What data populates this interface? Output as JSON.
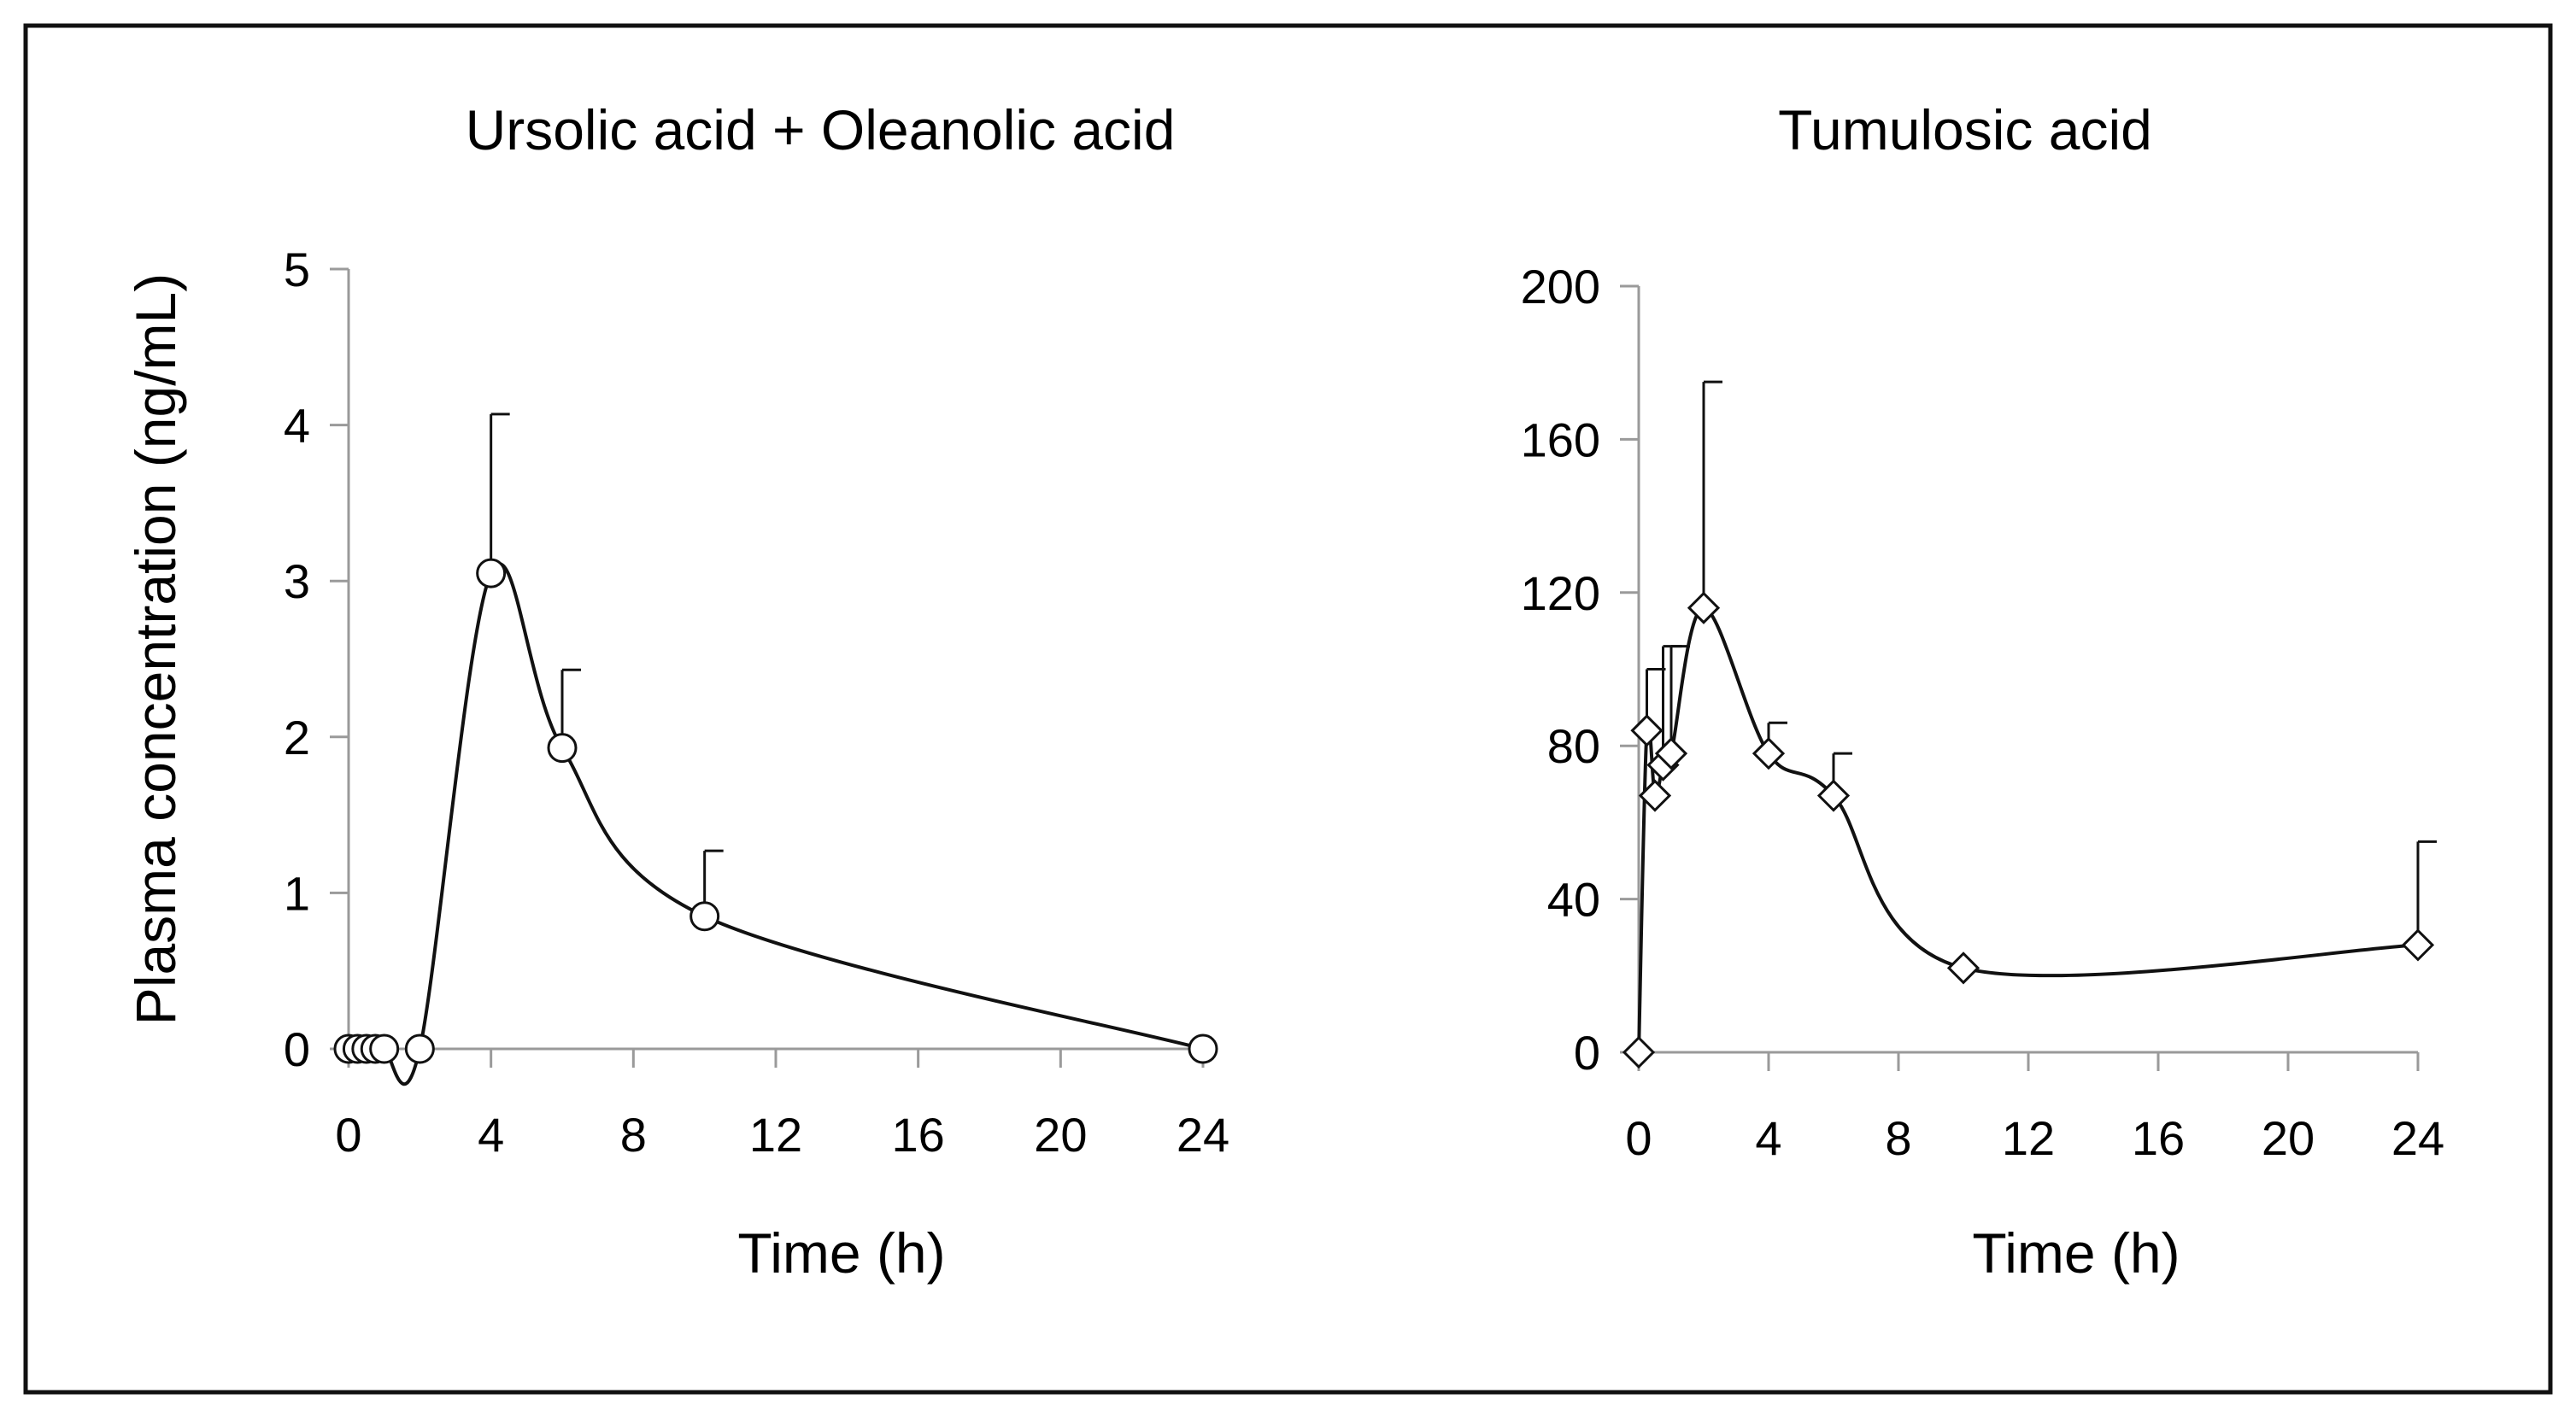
{
  "chart_data": [
    {
      "type": "line",
      "title": "Ursolic acid + Oleanolic acid",
      "xlabel": "Time (h)",
      "ylabel": "Plasma concentration (ng/mL)",
      "xlim": [
        0,
        24
      ],
      "ylim": [
        0,
        5
      ],
      "x_ticks": [
        0,
        4,
        8,
        12,
        16,
        20,
        24
      ],
      "y_ticks": [
        0,
        1,
        2,
        3,
        4,
        5
      ],
      "x_tick_labels": [
        "0",
        "4",
        "8",
        "12",
        "16",
        "20",
        "24"
      ],
      "y_tick_labels": [
        "0",
        "1",
        "2",
        "3",
        "4",
        "5"
      ],
      "marker": "circle",
      "grid": false,
      "series": [
        {
          "x": [
            0,
            0.25,
            0.5,
            0.75,
            1,
            2,
            4,
            6,
            10,
            24
          ],
          "y": [
            0,
            0,
            0,
            0,
            0,
            0,
            3.05,
            1.93,
            0.85,
            0
          ],
          "error_upper": [
            null,
            null,
            null,
            null,
            null,
            null,
            4.07,
            2.43,
            1.27,
            null
          ]
        }
      ]
    },
    {
      "type": "line",
      "title": "Tumulosic acid",
      "xlabel": "Time (h)",
      "ylabel": "",
      "xlim": [
        0,
        24
      ],
      "ylim": [
        0,
        200
      ],
      "x_ticks": [
        0,
        4,
        8,
        12,
        16,
        20,
        24
      ],
      "y_ticks": [
        0,
        40,
        80,
        120,
        160,
        200
      ],
      "x_tick_labels": [
        "0",
        "4",
        "8",
        "12",
        "16",
        "20",
        "24"
      ],
      "y_tick_labels": [
        "0",
        "40",
        "80",
        "120",
        "160",
        "200"
      ],
      "marker": "diamond",
      "grid": false,
      "series": [
        {
          "x": [
            0,
            0.25,
            0.5,
            0.75,
            1,
            2,
            4,
            6,
            10,
            24
          ],
          "y": [
            0,
            84,
            67,
            75,
            78,
            116,
            78,
            67,
            22,
            28
          ],
          "error_upper": [
            null,
            100,
            null,
            106,
            106,
            175,
            86,
            78,
            null,
            55
          ]
        }
      ]
    }
  ]
}
